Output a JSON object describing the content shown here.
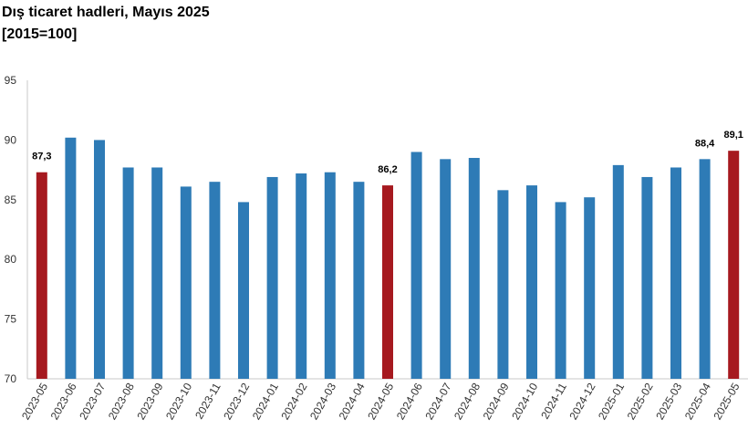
{
  "title": "Dış ticaret hadleri, Mayıs 2025",
  "subtitle": "[2015=100]",
  "colors": {
    "default_bar": "#2e7bb6",
    "highlight_bar": "#a6191f",
    "axis": "#c8c8c8"
  },
  "chart_data": {
    "type": "bar",
    "title": "Dış ticaret hadleri, Mayıs 2025",
    "subtitle": "[2015=100]",
    "xlabel": "",
    "ylabel": "",
    "ylim": [
      70,
      95
    ],
    "yticks": [
      "70",
      "75",
      "80",
      "85",
      "90",
      "95"
    ],
    "grid": false,
    "legend": "none",
    "categories": [
      "2023-05",
      "2023-06",
      "2023-07",
      "2023-08",
      "2023-09",
      "2023-10",
      "2023-11",
      "2023-12",
      "2024-01",
      "2024-02",
      "2024-03",
      "2024-04",
      "2024-05",
      "2024-06",
      "2024-07",
      "2024-08",
      "2024-09",
      "2024-10",
      "2024-11",
      "2024-12",
      "2025-01",
      "2025-02",
      "2025-03",
      "2025-04",
      "2025-05"
    ],
    "values": [
      87.3,
      90.2,
      90.0,
      87.7,
      87.7,
      86.1,
      86.5,
      84.8,
      86.9,
      87.2,
      87.3,
      86.5,
      86.2,
      89.0,
      88.4,
      88.5,
      85.8,
      86.2,
      84.8,
      85.2,
      87.9,
      86.9,
      87.7,
      88.4,
      89.1
    ],
    "highlighted": [
      "2023-05",
      "2024-05",
      "2025-05"
    ],
    "data_labels": [
      {
        "category": "2023-05",
        "text": "87,3"
      },
      {
        "category": "2024-05",
        "text": "86,2"
      },
      {
        "category": "2025-04",
        "text": "88,4"
      },
      {
        "category": "2025-05",
        "text": "89,1"
      }
    ]
  }
}
